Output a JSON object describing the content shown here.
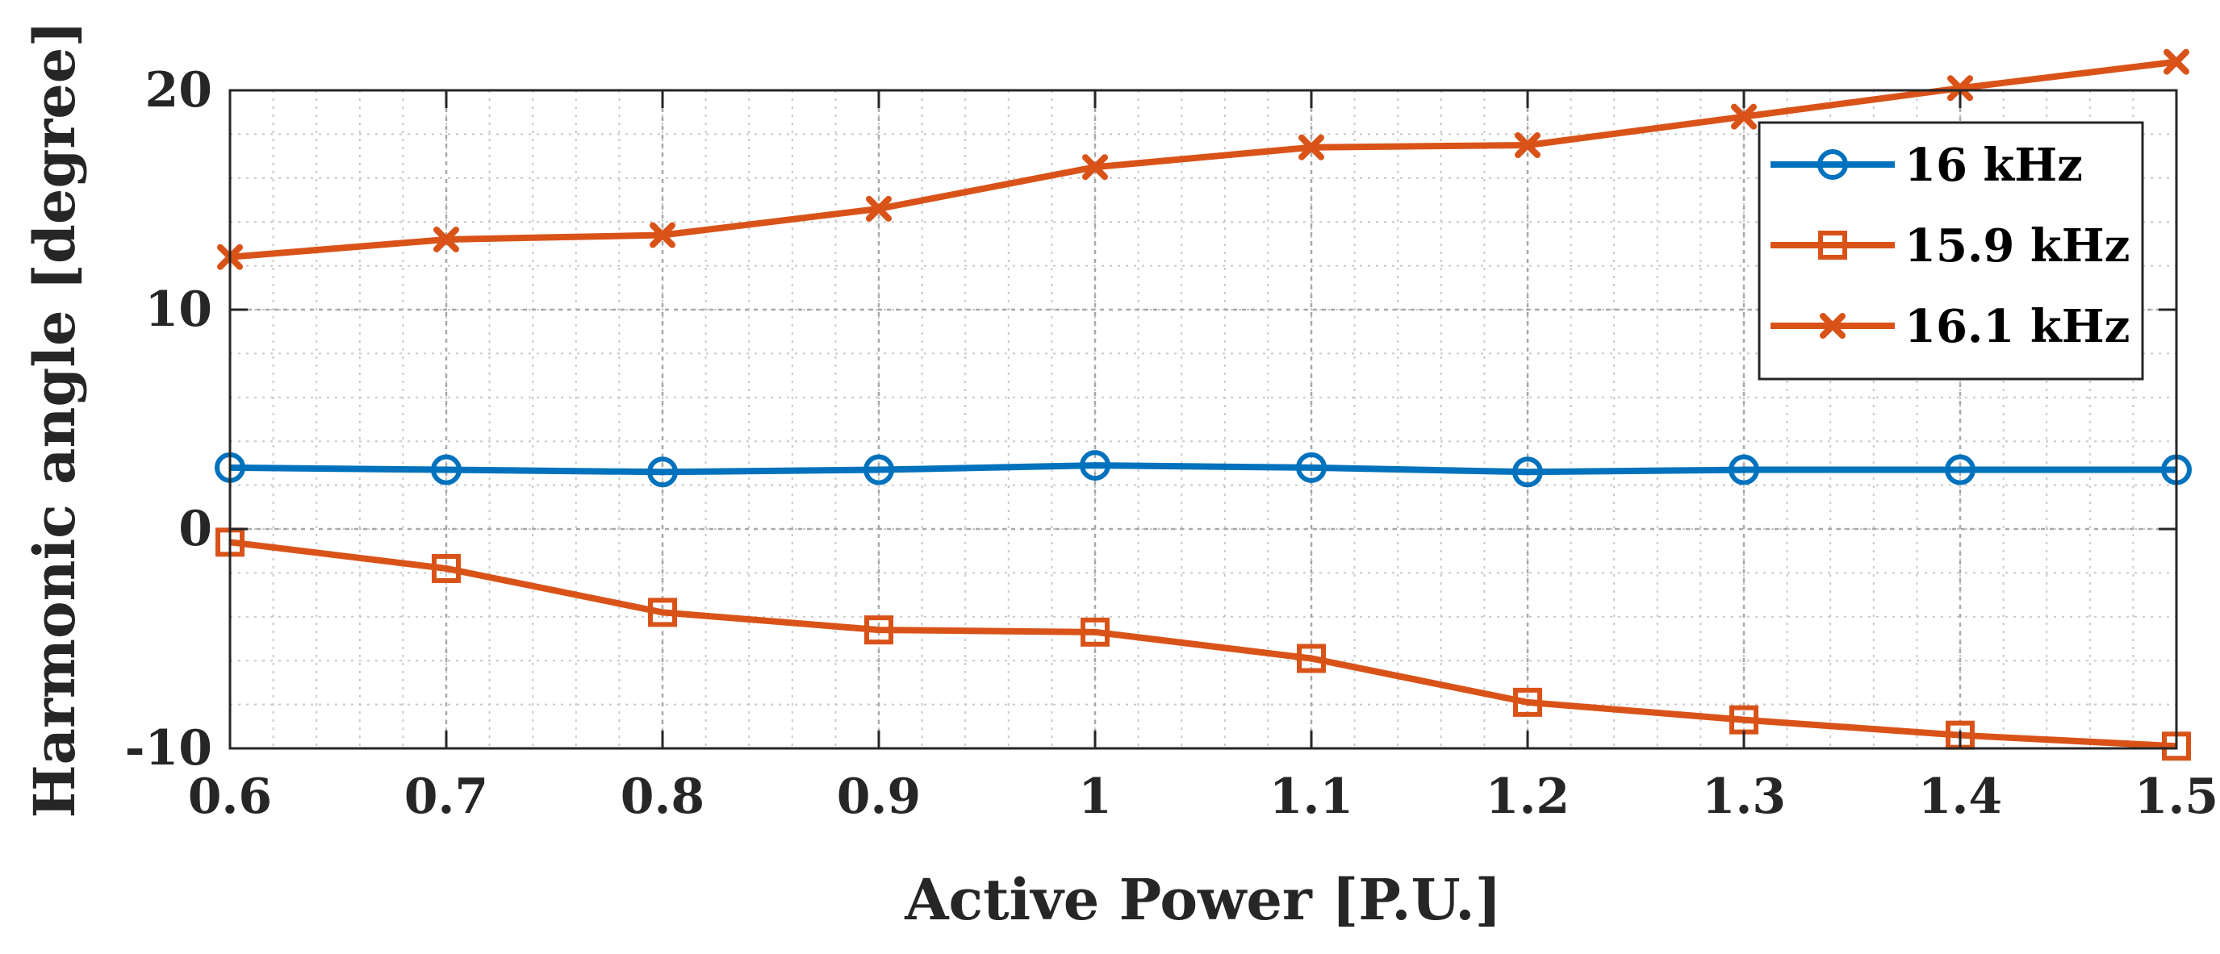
{
  "chart_data": {
    "type": "line",
    "title": "",
    "xlabel": "Active Power [P.U.]",
    "ylabel": "Harmonic angle [degree]",
    "xlim": [
      0.6,
      1.5
    ],
    "ylim": [
      -10,
      20
    ],
    "x": [
      0.6,
      0.7,
      0.8,
      0.9,
      1.0,
      1.1,
      1.2,
      1.3,
      1.4,
      1.5
    ],
    "xticks": [
      0.6,
      0.7,
      0.8,
      0.9,
      1.0,
      1.1,
      1.2,
      1.3,
      1.4,
      1.5
    ],
    "xtick_labels": [
      "0.6",
      "0.7",
      "0.8",
      "0.9",
      "1",
      "1.1",
      "1.2",
      "1.3",
      "1.4",
      "1.5"
    ],
    "yticks": [
      -10,
      0,
      10,
      20
    ],
    "ytick_labels": [
      "-10",
      "0",
      "10",
      "20"
    ],
    "grid": true,
    "legend_position": "top-right",
    "series": [
      {
        "name": "16 kHz",
        "color": "#0072BD",
        "marker": "circle",
        "values": [
          2.8,
          2.7,
          2.6,
          2.7,
          2.9,
          2.8,
          2.6,
          2.7,
          2.7,
          2.7
        ]
      },
      {
        "name": "15.9 kHz",
        "color": "#D95319",
        "marker": "square",
        "values": [
          -0.6,
          -1.8,
          -3.8,
          -4.6,
          -4.7,
          -5.9,
          -7.9,
          -8.7,
          -9.4,
          -9.9
        ]
      },
      {
        "name": "16.1 kHz",
        "color": "#D95319",
        "marker": "x",
        "values": [
          12.4,
          13.2,
          13.4,
          14.6,
          16.5,
          17.4,
          17.5,
          18.8,
          20.1,
          21.3
        ]
      }
    ]
  }
}
